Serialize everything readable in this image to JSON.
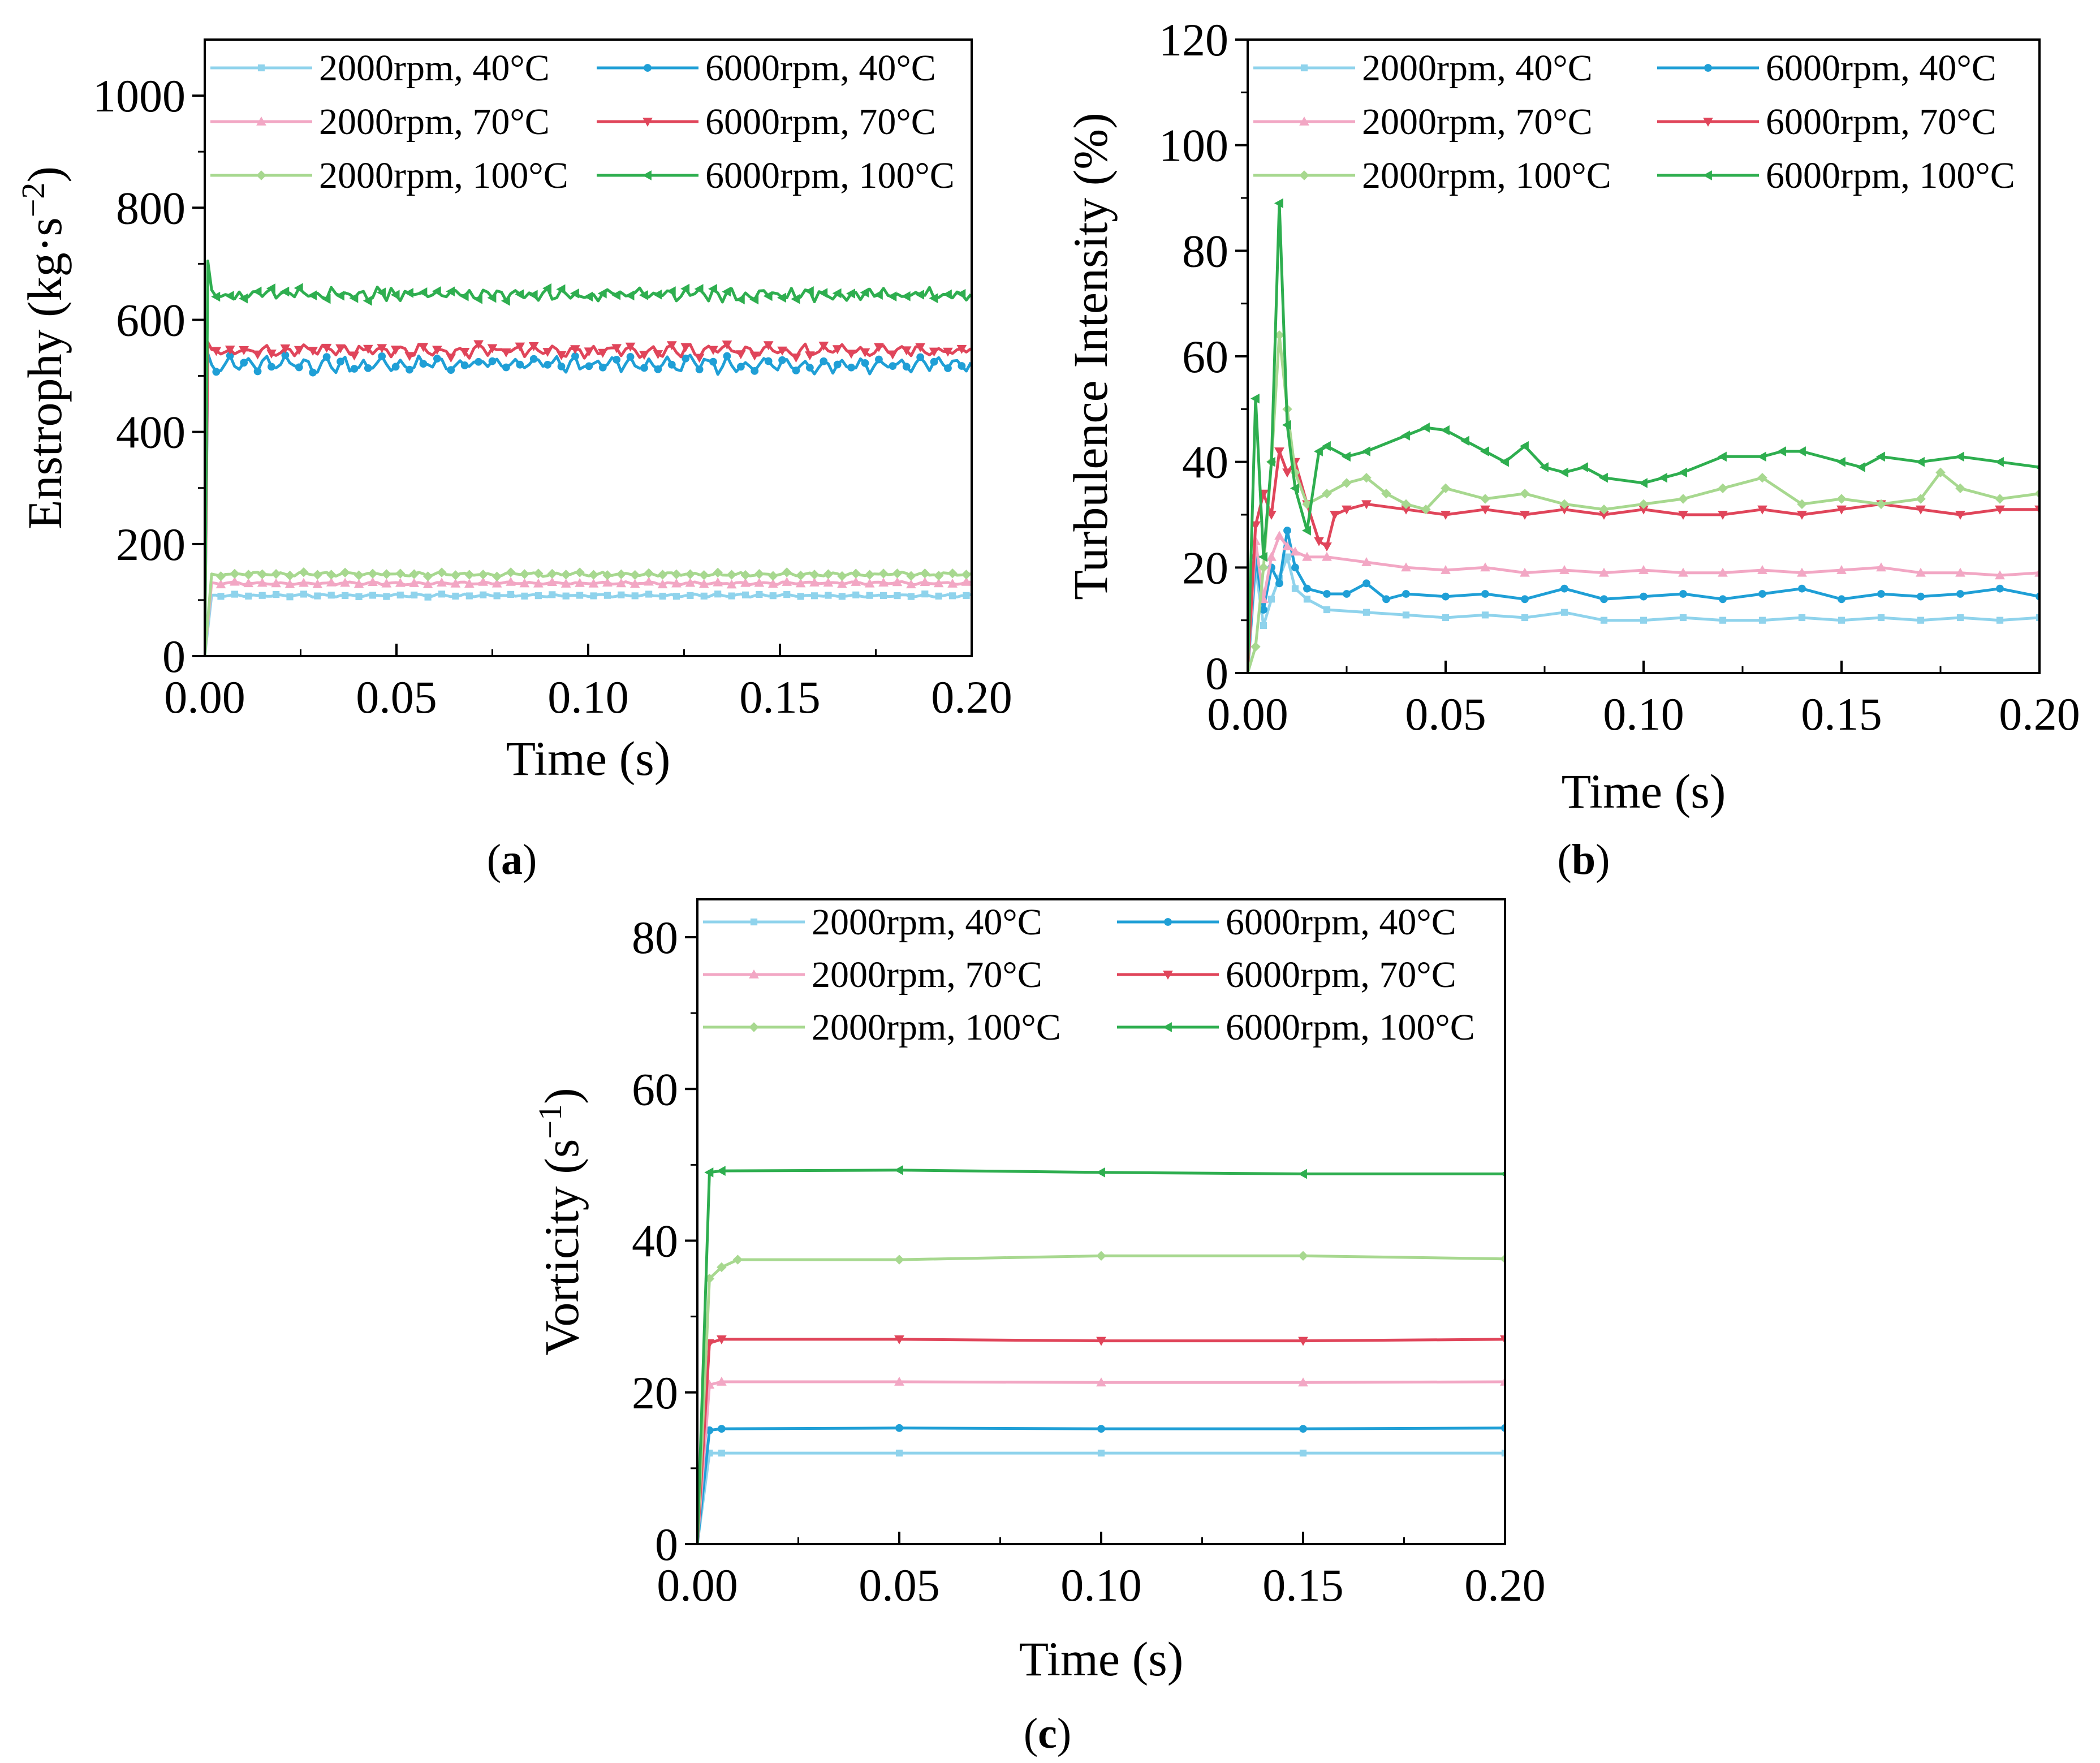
{
  "chart_data": [
    {
      "id": "a",
      "type": "line",
      "caption": "a",
      "xlabel": "Time (s)",
      "ylabel": "Enstrophy (kg·s",
      "ylabel_sup": "−2",
      "ylabel_close": ")",
      "xlim": [
        0.0,
        0.2
      ],
      "ylim": [
        0,
        1100
      ],
      "xticks": [
        0.0,
        0.05,
        0.1,
        0.15,
        0.2
      ],
      "xtick_labels": [
        "0.00",
        "0.05",
        "0.10",
        "0.15",
        "0.20"
      ],
      "yticks": [
        0,
        200,
        400,
        600,
        800,
        1000
      ],
      "ytick_labels": [
        "0",
        "200",
        "400",
        "600",
        "800",
        "1000"
      ],
      "legend_position": "top",
      "series": [
        {
          "name": "2000rpm, 40°C",
          "color": "#8fd3ec",
          "marker": "square",
          "base": 108,
          "amp": 3,
          "start": 0,
          "spike": null,
          "period": 0.006
        },
        {
          "name": "6000rpm, 40°C",
          "color": "#1f9fd6",
          "marker": "circle",
          "base": 520,
          "amp": 18,
          "start": 0,
          "spike": 540,
          "period": 0.005
        },
        {
          "name": "2000rpm, 70°C",
          "color": "#f2a7c4",
          "marker": "triangle-up",
          "base": 130,
          "amp": 3,
          "start": 0,
          "spike": null,
          "period": 0.006
        },
        {
          "name": "6000rpm, 70°C",
          "color": "#e0455a",
          "marker": "triangle-down",
          "base": 545,
          "amp": 14,
          "start": 0,
          "spike": 560,
          "period": 0.005
        },
        {
          "name": "2000rpm, 100°C",
          "color": "#a7d88f",
          "marker": "diamond",
          "base": 146,
          "amp": 4,
          "start": 0,
          "spike": null,
          "period": 0.006
        },
        {
          "name": "6000rpm, 100°C",
          "color": "#2eae4f",
          "marker": "triangle-left",
          "base": 645,
          "amp": 14,
          "start": 0,
          "spike": 705,
          "period": 0.004
        }
      ]
    },
    {
      "id": "b",
      "type": "line",
      "caption": "b",
      "xlabel": "Time (s)",
      "ylabel": "Turbulence Intensity (%)",
      "xlim": [
        0.0,
        0.2
      ],
      "ylim": [
        0,
        120
      ],
      "xticks": [
        0.0,
        0.05,
        0.1,
        0.15,
        0.2
      ],
      "xtick_labels": [
        "0.00",
        "0.05",
        "0.10",
        "0.15",
        "0.20"
      ],
      "yticks": [
        0,
        20,
        40,
        60,
        80,
        100,
        120
      ],
      "ytick_labels": [
        "0",
        "20",
        "40",
        "60",
        "80",
        "100",
        "120"
      ],
      "legend_position": "top",
      "series": [
        {
          "name": "2000rpm, 40°C",
          "color": "#8fd3ec",
          "marker": "square",
          "x": [
            0,
            0.002,
            0.004,
            0.006,
            0.008,
            0.01,
            0.012,
            0.015,
            0.02,
            0.03,
            0.04,
            0.05,
            0.06,
            0.07,
            0.08,
            0.09,
            0.1,
            0.11,
            0.12,
            0.13,
            0.14,
            0.15,
            0.16,
            0.17,
            0.18,
            0.19,
            0.2
          ],
          "y": [
            0,
            20,
            9,
            14,
            18,
            22,
            16,
            14,
            12,
            11.5,
            11,
            10.5,
            11,
            10.5,
            11.5,
            10,
            10,
            10.5,
            10,
            10,
            10.5,
            10,
            10.5,
            10,
            10.5,
            10,
            10.5
          ]
        },
        {
          "name": "6000rpm, 40°C",
          "color": "#1f9fd6",
          "marker": "circle",
          "x": [
            0,
            0.002,
            0.004,
            0.006,
            0.008,
            0.01,
            0.012,
            0.015,
            0.02,
            0.025,
            0.03,
            0.035,
            0.04,
            0.05,
            0.06,
            0.07,
            0.08,
            0.09,
            0.1,
            0.11,
            0.12,
            0.13,
            0.14,
            0.15,
            0.16,
            0.17,
            0.18,
            0.19,
            0.2
          ],
          "y": [
            0,
            22,
            12,
            20,
            17,
            27,
            20,
            16,
            15,
            15,
            17,
            14,
            15,
            14.5,
            15,
            14,
            16,
            14,
            14.5,
            15,
            14,
            15,
            16,
            14,
            15,
            14.5,
            15,
            16,
            14.5
          ]
        },
        {
          "name": "2000rpm, 70°C",
          "color": "#f2a7c4",
          "marker": "triangle-up",
          "x": [
            0,
            0.002,
            0.004,
            0.006,
            0.008,
            0.01,
            0.012,
            0.015,
            0.02,
            0.03,
            0.04,
            0.05,
            0.06,
            0.07,
            0.08,
            0.09,
            0.1,
            0.11,
            0.12,
            0.13,
            0.14,
            0.15,
            0.16,
            0.17,
            0.18,
            0.19,
            0.2
          ],
          "y": [
            0,
            25,
            14,
            22,
            26,
            24,
            23,
            22,
            22,
            21,
            20,
            19.5,
            20,
            19,
            19.5,
            19,
            19.5,
            19,
            19,
            19.5,
            19,
            19.5,
            20,
            19,
            19,
            18.5,
            19
          ]
        },
        {
          "name": "6000rpm, 70°C",
          "color": "#e0455a",
          "marker": "triangle-down",
          "x": [
            0,
            0.002,
            0.004,
            0.006,
            0.008,
            0.01,
            0.012,
            0.015,
            0.018,
            0.02,
            0.022,
            0.025,
            0.03,
            0.04,
            0.05,
            0.06,
            0.07,
            0.08,
            0.09,
            0.1,
            0.11,
            0.12,
            0.13,
            0.14,
            0.15,
            0.16,
            0.17,
            0.18,
            0.19,
            0.2
          ],
          "y": [
            0,
            28,
            34,
            30,
            42,
            38,
            40,
            32,
            25,
            24,
            30,
            31,
            32,
            31,
            30,
            31,
            30,
            31,
            30,
            31,
            30,
            30,
            31,
            30,
            31,
            32,
            31,
            30,
            31,
            31
          ]
        },
        {
          "name": "2000rpm, 100°C",
          "color": "#a7d88f",
          "marker": "diamond",
          "x": [
            0,
            0.002,
            0.004,
            0.006,
            0.008,
            0.01,
            0.012,
            0.015,
            0.02,
            0.025,
            0.03,
            0.035,
            0.04,
            0.045,
            0.05,
            0.06,
            0.07,
            0.08,
            0.09,
            0.1,
            0.11,
            0.12,
            0.13,
            0.14,
            0.15,
            0.16,
            0.17,
            0.175,
            0.18,
            0.19,
            0.2
          ],
          "y": [
            0,
            5,
            20,
            40,
            64,
            50,
            38,
            32,
            34,
            36,
            37,
            34,
            32,
            31,
            35,
            33,
            34,
            32,
            31,
            32,
            33,
            35,
            37,
            32,
            33,
            32,
            33,
            38,
            35,
            33,
            34
          ]
        },
        {
          "name": "6000rpm, 100°C",
          "color": "#2eae4f",
          "marker": "triangle-left",
          "x": [
            0,
            0.002,
            0.004,
            0.006,
            0.008,
            0.01,
            0.012,
            0.015,
            0.018,
            0.02,
            0.025,
            0.03,
            0.04,
            0.045,
            0.05,
            0.055,
            0.06,
            0.065,
            0.07,
            0.075,
            0.08,
            0.085,
            0.09,
            0.1,
            0.105,
            0.11,
            0.12,
            0.13,
            0.135,
            0.14,
            0.15,
            0.155,
            0.16,
            0.17,
            0.18,
            0.19,
            0.2
          ],
          "y": [
            0,
            52,
            22,
            40,
            89,
            47,
            35,
            27,
            42,
            43,
            41,
            42,
            45,
            46.5,
            46,
            44,
            42,
            40,
            43,
            39,
            38,
            39,
            37,
            36,
            37,
            38,
            41,
            41,
            42,
            42,
            40,
            39,
            41,
            40,
            41,
            40,
            39
          ]
        }
      ]
    },
    {
      "id": "c",
      "type": "line",
      "caption": "c",
      "xlabel": "Time (s)",
      "ylabel": "Vorticity (s",
      "ylabel_sup": "−1",
      "ylabel_close": ")",
      "xlim": [
        0.0,
        0.2
      ],
      "ylim": [
        0,
        85
      ],
      "xticks": [
        0.0,
        0.05,
        0.1,
        0.15,
        0.2
      ],
      "xtick_labels": [
        "0.00",
        "0.05",
        "0.10",
        "0.15",
        "0.20"
      ],
      "yticks": [
        0,
        20,
        40,
        60,
        80
      ],
      "ytick_labels": [
        "0",
        "20",
        "40",
        "60",
        "80"
      ],
      "legend_position": "top",
      "series": [
        {
          "name": "2000rpm, 40°C",
          "color": "#8fd3ec",
          "marker": "square",
          "x": [
            0,
            0.003,
            0.006,
            0.05,
            0.1,
            0.15,
            0.2
          ],
          "y": [
            0,
            12,
            12,
            12,
            12,
            12,
            12
          ]
        },
        {
          "name": "6000rpm, 40°C",
          "color": "#1f9fd6",
          "marker": "circle",
          "x": [
            0,
            0.003,
            0.006,
            0.05,
            0.1,
            0.15,
            0.2
          ],
          "y": [
            0,
            15,
            15.2,
            15.3,
            15.2,
            15.2,
            15.3
          ]
        },
        {
          "name": "2000rpm, 70°C",
          "color": "#f2a7c4",
          "marker": "triangle-up",
          "x": [
            0,
            0.003,
            0.006,
            0.05,
            0.1,
            0.15,
            0.2
          ],
          "y": [
            0,
            21,
            21.4,
            21.4,
            21.3,
            21.3,
            21.4
          ]
        },
        {
          "name": "6000rpm, 70°C",
          "color": "#e0455a",
          "marker": "triangle-down",
          "x": [
            0,
            0.003,
            0.006,
            0.05,
            0.1,
            0.15,
            0.2
          ],
          "y": [
            0,
            26.5,
            27,
            27,
            26.8,
            26.8,
            27
          ]
        },
        {
          "name": "2000rpm, 100°C",
          "color": "#a7d88f",
          "marker": "diamond",
          "x": [
            0,
            0.003,
            0.006,
            0.01,
            0.05,
            0.1,
            0.15,
            0.2
          ],
          "y": [
            0,
            35,
            36.5,
            37.5,
            37.5,
            38,
            38,
            37.6
          ]
        },
        {
          "name": "6000rpm, 100°C",
          "color": "#2eae4f",
          "marker": "triangle-left",
          "x": [
            0,
            0.003,
            0.006,
            0.05,
            0.1,
            0.15,
            0.2
          ],
          "y": [
            0,
            49,
            49.2,
            49.3,
            49,
            48.8,
            48.8
          ]
        }
      ]
    }
  ]
}
